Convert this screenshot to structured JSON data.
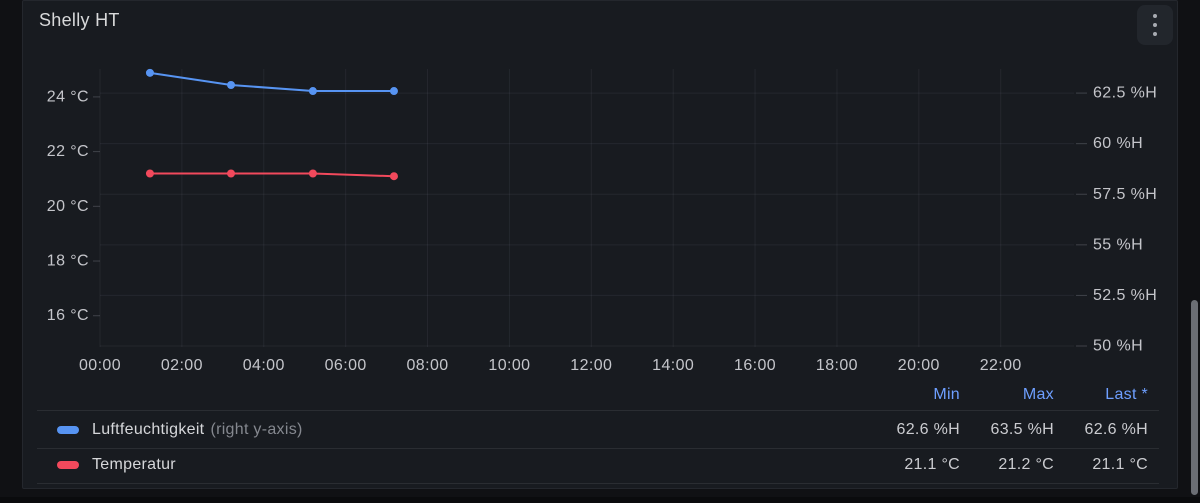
{
  "panel": {
    "title": "Shelly HT"
  },
  "icons": {
    "panel_menu": "kebab-vertical-icon"
  },
  "colors": {
    "page_bg": "#101114",
    "panel_bg": "#181b20",
    "humidity_series": "#5794F2",
    "temperature_series": "#F2495C",
    "legend_header": "#6e9fff",
    "axis_text": "#c4c5ca"
  },
  "chart_data": {
    "type": "line",
    "title": "Shelly HT",
    "grid": "on",
    "legend_position": "bottom-table",
    "x_axis": {
      "range_hours": [
        0,
        23.79
      ],
      "tick_hours": [
        0,
        2,
        4,
        6,
        8,
        10,
        12,
        14,
        16,
        18,
        20,
        22
      ],
      "tick_labels": [
        "00:00",
        "02:00",
        "04:00",
        "06:00",
        "08:00",
        "10:00",
        "12:00",
        "14:00",
        "16:00",
        "18:00",
        "20:00",
        "22:00"
      ]
    },
    "y_axis_left": {
      "unit": "°C",
      "range": [
        14.93,
        25.02
      ],
      "tick_values": [
        24,
        22,
        20,
        18,
        16
      ],
      "tick_labels": [
        "24 °C",
        "22 °C",
        "20 °C",
        "18 °C",
        "16 °C"
      ]
    },
    "y_axis_right": {
      "unit": "%H",
      "range": [
        50.05,
        63.69
      ],
      "tick_values": [
        62.5,
        60,
        57.5,
        55,
        52.5,
        50
      ],
      "tick_labels": [
        "62.5 %H",
        "60 %H",
        "57.5 %H",
        "55 %H",
        "52.5 %H",
        "50 %H"
      ]
    },
    "series": [
      {
        "name": "Luftfeuchtigkeit",
        "axis": "right",
        "color": "#5794F2",
        "x_hours": [
          1.22,
          3.2,
          5.2,
          7.18
        ],
        "values": [
          63.5,
          62.9,
          62.6,
          62.6
        ]
      },
      {
        "name": "Temperatur",
        "axis": "left",
        "color": "#F2495C",
        "x_hours": [
          1.22,
          3.2,
          5.2,
          7.18
        ],
        "values": [
          21.2,
          21.2,
          21.2,
          21.1
        ]
      }
    ]
  },
  "legend": {
    "columns": [
      "Min",
      "Max",
      "Last *"
    ],
    "rows": [
      {
        "label": "Luftfeuchtigkeit",
        "label_note": "(right y-axis)",
        "color": "#5794F2",
        "min": "62.6 %H",
        "max": "63.5 %H",
        "last": "62.6 %H"
      },
      {
        "label": "Temperatur",
        "label_note": "",
        "color": "#F2495C",
        "min": "21.1 °C",
        "max": "21.2 °C",
        "last": "21.1 °C"
      }
    ]
  }
}
